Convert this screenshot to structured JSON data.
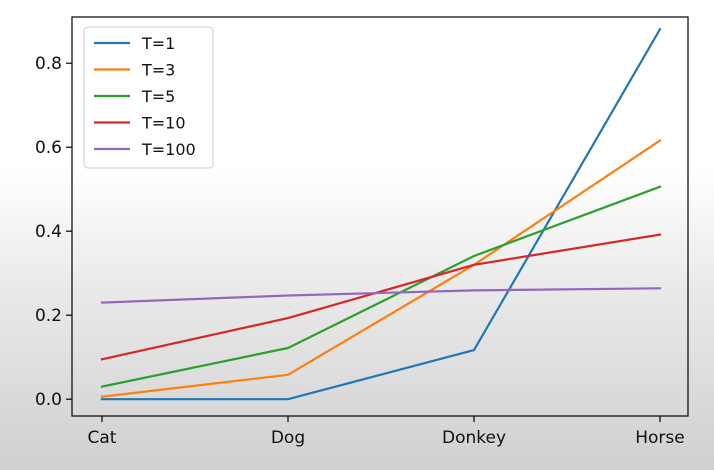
{
  "chart_data": {
    "type": "line",
    "categories": [
      "Cat",
      "Dog",
      "Donkey",
      "Horse"
    ],
    "ylim": [
      -0.04,
      0.91
    ],
    "yticks": [
      0.0,
      0.2,
      0.4,
      0.6,
      0.8
    ],
    "ytick_labels": [
      "0.0",
      "0.2",
      "0.4",
      "0.6",
      "0.8"
    ],
    "grid": false,
    "legend_position": "top-left",
    "title": "",
    "xlabel": "",
    "ylabel": "",
    "series": [
      {
        "name": "T=1",
        "color": "#1f77b4",
        "values": [
          0.0,
          0.0,
          0.117,
          0.881
        ]
      },
      {
        "name": "T=3",
        "color": "#ff7f0e",
        "values": [
          0.006,
          0.058,
          0.32,
          0.616
        ]
      },
      {
        "name": "T=5",
        "color": "#2ca02c",
        "values": [
          0.03,
          0.122,
          0.341,
          0.506
        ]
      },
      {
        "name": "T=10",
        "color": "#d62728",
        "values": [
          0.095,
          0.193,
          0.32,
          0.392
        ]
      },
      {
        "name": "T=100",
        "color": "#9467bd",
        "values": [
          0.23,
          0.247,
          0.259,
          0.264
        ]
      }
    ]
  }
}
